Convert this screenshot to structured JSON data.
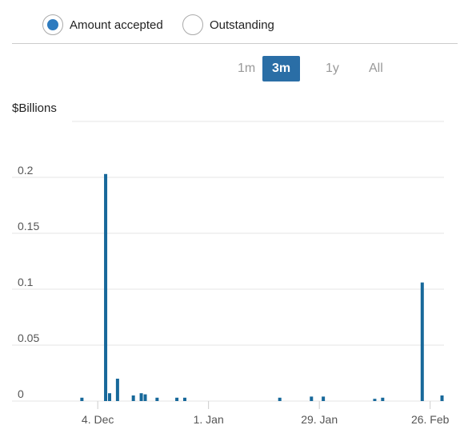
{
  "controls": {
    "radios": [
      {
        "label": "Amount accepted",
        "selected": true
      },
      {
        "label": "Outstanding",
        "selected": false
      }
    ],
    "ranges": [
      {
        "label": "1m",
        "active": false
      },
      {
        "label": "3m",
        "active": true
      },
      {
        "label": "1y",
        "active": false
      },
      {
        "label": "All",
        "active": false
      }
    ]
  },
  "chart_data": {
    "type": "bar",
    "y_label": "$Billions",
    "color": "#17689a",
    "grid": true,
    "x": [
      -4,
      2,
      3,
      5,
      9,
      11,
      12,
      15,
      20,
      22,
      46,
      54,
      57,
      70,
      72,
      82,
      87
    ],
    "values": [
      0.003,
      0.203,
      0.007,
      0.02,
      0.005,
      0.007,
      0.006,
      0.003,
      0.003,
      0.003,
      0.003,
      0.004,
      0.004,
      0.002,
      0.003,
      0.106,
      0.005
    ],
    "xlim": [
      -6.5,
      87.5
    ],
    "xticks": [
      {
        "value": 0,
        "label": "4. Dec"
      },
      {
        "value": 28,
        "label": "1. Jan"
      },
      {
        "value": 56,
        "label": "29. Jan"
      },
      {
        "value": 84,
        "label": "26. Feb"
      }
    ],
    "ylim": [
      0,
      0.25
    ],
    "yticks": [
      0,
      0.05,
      0.1,
      0.15,
      0.2
    ]
  }
}
